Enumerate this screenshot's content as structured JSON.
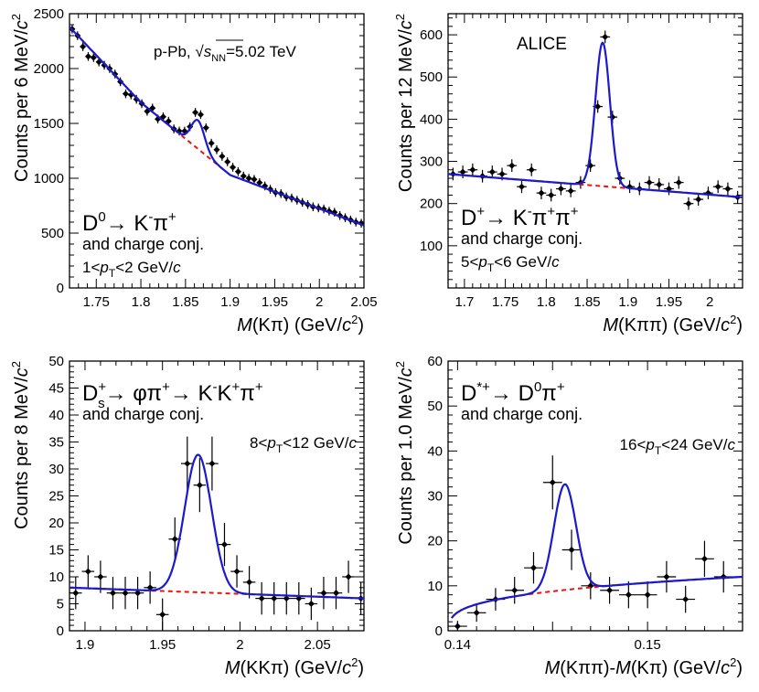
{
  "colors": {
    "fit": "#1a1acc",
    "background": "#ee1111",
    "points": "#000000",
    "frame": "#000000"
  },
  "chart_data": [
    {
      "type": "scatter",
      "id": "d0",
      "xlim": [
        1.72,
        2.05
      ],
      "ylim": [
        0,
        2500
      ],
      "xticks": [
        1.75,
        1.8,
        1.85,
        1.9,
        1.95,
        2.0,
        2.05
      ],
      "xtick_labels": [
        "1.75",
        "1.8",
        "1.85",
        "1.9",
        "1.95",
        "2",
        "2.05"
      ],
      "yticks": [
        0,
        500,
        1000,
        1500,
        2000,
        2500
      ],
      "ytick_labels": [
        "0",
        "500",
        "1000",
        "1500",
        "2000",
        "2500"
      ],
      "xminor": 0.01,
      "yminor": 100,
      "xlabel_italic": "M",
      "xlabel_rest": "(Kπ) (GeV/",
      "ylabel": "Counts per 6 MeV/",
      "particle": "D",
      "particle_sup": "0",
      "decay_text": "→ K",
      "decay_sup": "-",
      "decay_tail": "π",
      "decay_tail_sup": "+",
      "conj": "and charge conj.",
      "pt_label": "1<p_T<2 GeV/c",
      "note": "p-Pb, √s_NN=5.02 TeV",
      "fit": {
        "mean": 1.864,
        "sigma": 0.0075,
        "amp": 260,
        "bkg": [
          [
            1.72,
            2380
          ],
          [
            1.8,
            1690
          ],
          [
            1.9,
            1030
          ],
          [
            2.05,
            570
          ]
        ]
      },
      "points": [
        [
          1.723,
          2360,
          40
        ],
        [
          1.729,
          2300,
          40
        ],
        [
          1.735,
          2200,
          40
        ],
        [
          1.741,
          2110,
          40
        ],
        [
          1.747,
          2100,
          40
        ],
        [
          1.753,
          2060,
          40
        ],
        [
          1.759,
          2030,
          40
        ],
        [
          1.765,
          2000,
          40
        ],
        [
          1.771,
          1950,
          40
        ],
        [
          1.777,
          1880,
          40
        ],
        [
          1.783,
          1770,
          40
        ],
        [
          1.789,
          1760,
          40
        ],
        [
          1.795,
          1720,
          40
        ],
        [
          1.801,
          1680,
          40
        ],
        [
          1.807,
          1610,
          40
        ],
        [
          1.813,
          1640,
          40
        ],
        [
          1.819,
          1540,
          40
        ],
        [
          1.825,
          1560,
          40
        ],
        [
          1.831,
          1520,
          40
        ],
        [
          1.837,
          1450,
          40
        ],
        [
          1.843,
          1430,
          40
        ],
        [
          1.849,
          1430,
          40
        ],
        [
          1.855,
          1470,
          40
        ],
        [
          1.861,
          1600,
          40
        ],
        [
          1.867,
          1580,
          40
        ],
        [
          1.873,
          1460,
          40
        ],
        [
          1.879,
          1320,
          40
        ],
        [
          1.885,
          1260,
          40
        ],
        [
          1.891,
          1200,
          40
        ],
        [
          1.897,
          1150,
          40
        ],
        [
          1.903,
          1100,
          40
        ],
        [
          1.909,
          1060,
          40
        ],
        [
          1.915,
          1020,
          40
        ],
        [
          1.921,
          1000,
          40
        ],
        [
          1.927,
          990,
          40
        ],
        [
          1.933,
          960,
          40
        ],
        [
          1.939,
          930,
          40
        ],
        [
          1.945,
          900,
          40
        ],
        [
          1.951,
          870,
          40
        ],
        [
          1.957,
          860,
          40
        ],
        [
          1.963,
          830,
          40
        ],
        [
          1.969,
          820,
          40
        ],
        [
          1.975,
          800,
          40
        ],
        [
          1.981,
          780,
          40
        ],
        [
          1.987,
          760,
          40
        ],
        [
          1.993,
          740,
          40
        ],
        [
          1.999,
          730,
          40
        ],
        [
          2.005,
          720,
          40
        ],
        [
          2.011,
          700,
          40
        ],
        [
          2.017,
          690,
          40
        ],
        [
          2.023,
          660,
          40
        ],
        [
          2.029,
          640,
          40
        ],
        [
          2.035,
          620,
          40
        ],
        [
          2.041,
          600,
          40
        ],
        [
          2.047,
          590,
          40
        ]
      ]
    },
    {
      "type": "scatter",
      "id": "dplus",
      "xlim": [
        1.68,
        2.04
      ],
      "ylim": [
        0,
        650
      ],
      "xticks": [
        1.7,
        1.75,
        1.8,
        1.85,
        1.9,
        1.95,
        2.0
      ],
      "xtick_labels": [
        "1.7",
        "1.75",
        "1.8",
        "1.85",
        "1.9",
        "1.95",
        "2"
      ],
      "yticks": [
        100,
        200,
        300,
        400,
        500,
        600
      ],
      "ytick_labels": [
        "100",
        "200",
        "300",
        "400",
        "500",
        "600"
      ],
      "xminor": 0.01,
      "yminor": 20,
      "xlabel_italic": "M",
      "xlabel_rest": "(Kππ) (GeV/",
      "ylabel": "Counts per 12 MeV/",
      "particle": "D",
      "particle_sup": "+",
      "decay_text": "→ K",
      "decay_sup": "-",
      "decay_tail": "π",
      "decay_tail_sup": "+",
      "decay_tail2": "π",
      "decay_tail2_sup": "+",
      "conj": "and charge conj.",
      "pt_label": "5<p_T<6 GeV/c",
      "note": "ALICE",
      "fit": {
        "mean": 1.869,
        "sigma": 0.0088,
        "amp": 340,
        "bkg": [
          [
            1.68,
            270
          ],
          [
            2.04,
            215
          ]
        ]
      },
      "points": [
        [
          1.686,
          270,
          15
        ],
        [
          1.698,
          275,
          15
        ],
        [
          1.71,
          280,
          15
        ],
        [
          1.722,
          265,
          15
        ],
        [
          1.734,
          275,
          15
        ],
        [
          1.746,
          270,
          15
        ],
        [
          1.758,
          290,
          15
        ],
        [
          1.77,
          240,
          15
        ],
        [
          1.782,
          280,
          15
        ],
        [
          1.794,
          225,
          15
        ],
        [
          1.806,
          220,
          15
        ],
        [
          1.818,
          235,
          15
        ],
        [
          1.83,
          230,
          15
        ],
        [
          1.842,
          250,
          15
        ],
        [
          1.854,
          290,
          15
        ],
        [
          1.863,
          430,
          15
        ],
        [
          1.872,
          595,
          15
        ],
        [
          1.881,
          405,
          15
        ],
        [
          1.89,
          260,
          15
        ],
        [
          1.902,
          240,
          15
        ],
        [
          1.914,
          235,
          15
        ],
        [
          1.926,
          250,
          15
        ],
        [
          1.938,
          245,
          15
        ],
        [
          1.95,
          235,
          15
        ],
        [
          1.962,
          250,
          15
        ],
        [
          1.974,
          200,
          15
        ],
        [
          1.986,
          210,
          15
        ],
        [
          1.998,
          225,
          15
        ],
        [
          2.01,
          240,
          15
        ],
        [
          2.022,
          235,
          15
        ],
        [
          2.034,
          215,
          15
        ]
      ]
    },
    {
      "type": "scatter",
      "id": "ds",
      "xlim": [
        1.89,
        2.08
      ],
      "ylim": [
        0,
        50
      ],
      "xticks": [
        1.9,
        1.95,
        2.0,
        2.05
      ],
      "xtick_labels": [
        "1.9",
        "1.95",
        "2",
        "2.05"
      ],
      "yticks": [
        0,
        5,
        10,
        15,
        20,
        25,
        30,
        35,
        40,
        45,
        50
      ],
      "ytick_labels": [
        "0",
        "5",
        "10",
        "15",
        "20",
        "25",
        "30",
        "35",
        "40",
        "45",
        "50"
      ],
      "xminor": 0.01,
      "yminor": 1,
      "xlabel_italic": "M",
      "xlabel_rest": "(KKπ) (GeV/",
      "ylabel": "Counts per 8 MeV/",
      "particle": "D",
      "particle_sup": "+",
      "particle_sub": "s",
      "decay_text": "→ φπ",
      "decay_sup": "+",
      "decay_tail": "→  K",
      "decay_tail_sup": "-",
      "decay_tail2": "K",
      "decay_tail2_sup": "+",
      "decay_tail3": "π",
      "decay_tail3_sup": "+",
      "conj": "and charge conj.",
      "pt_label": "8<p_T<12 GeV/c",
      "fit": {
        "mean": 1.973,
        "sigma": 0.0087,
        "amp": 25.5,
        "bkg": [
          [
            1.89,
            8.0
          ],
          [
            2.08,
            6.0
          ]
        ]
      },
      "points": [
        [
          1.894,
          7,
          3
        ],
        [
          1.902,
          11,
          3
        ],
        [
          1.91,
          10,
          3
        ],
        [
          1.918,
          7,
          3
        ],
        [
          1.926,
          7,
          3
        ],
        [
          1.934,
          7,
          3
        ],
        [
          1.942,
          8,
          3
        ],
        [
          1.95,
          3,
          3
        ],
        [
          1.958,
          17,
          4
        ],
        [
          1.966,
          31,
          5
        ],
        [
          1.974,
          27,
          5
        ],
        [
          1.982,
          31,
          5
        ],
        [
          1.99,
          16,
          4
        ],
        [
          1.998,
          11,
          3
        ],
        [
          2.006,
          9,
          3
        ],
        [
          2.014,
          6,
          3
        ],
        [
          2.022,
          6,
          3
        ],
        [
          2.03,
          6,
          3
        ],
        [
          2.038,
          6,
          3
        ],
        [
          2.046,
          5,
          3
        ],
        [
          2.054,
          7,
          3
        ],
        [
          2.062,
          7,
          3
        ],
        [
          2.07,
          10,
          3
        ],
        [
          2.078,
          6,
          3
        ]
      ]
    },
    {
      "type": "scatter",
      "id": "dstar",
      "xlim": [
        0.1395,
        0.155
      ],
      "ylim": [
        0,
        60
      ],
      "xticks": [
        0.14,
        0.145,
        0.15,
        0.155
      ],
      "xtick_labels": [
        "0.14",
        "",
        "0.15",
        ""
      ],
      "yticks": [
        0,
        10,
        20,
        30,
        40,
        50,
        60
      ],
      "ytick_labels": [
        "0",
        "10",
        "20",
        "30",
        "40",
        "50",
        "60"
      ],
      "xminor": 0.001,
      "yminor": 2,
      "xlabel_italic": "M",
      "xlabel_rest": "(Kππ)-",
      "xlabel_italic2": "M",
      "xlabel_rest2": "(Kπ) (GeV/",
      "ylabel": "Counts per 1.0 MeV/",
      "particle": "D",
      "particle_sup": "*+",
      "decay_text": "→ D",
      "decay_sup": "0",
      "decay_tail": "π",
      "decay_tail_sup": "+",
      "conj": "and charge conj.",
      "pt_label": "16<p_T<24 GeV/c",
      "fit": {
        "mean": 0.14565,
        "sigma": 0.00058,
        "amp": 23.5,
        "threshold": 0.13957
      },
      "points": [
        [
          0.14,
          1,
          1.2
        ],
        [
          0.141,
          4,
          2
        ],
        [
          0.142,
          7,
          2.5
        ],
        [
          0.143,
          9,
          3
        ],
        [
          0.144,
          14,
          3.5
        ],
        [
          0.145,
          33,
          6
        ],
        [
          0.146,
          18,
          4.5
        ],
        [
          0.147,
          10,
          3
        ],
        [
          0.148,
          9,
          3
        ],
        [
          0.149,
          8,
          3
        ],
        [
          0.15,
          8,
          3
        ],
        [
          0.151,
          12,
          3.5
        ],
        [
          0.152,
          7,
          3
        ],
        [
          0.153,
          16,
          4
        ],
        [
          0.154,
          12,
          3.5
        ]
      ]
    }
  ]
}
